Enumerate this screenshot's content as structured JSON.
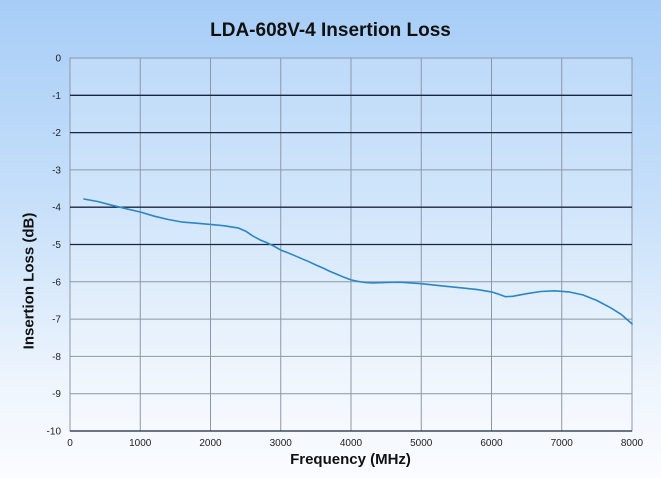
{
  "chart_data": {
    "type": "line",
    "title": "LDA-608V-4 Insertion Loss",
    "xlabel": "Frequency (MHz)",
    "ylabel": "Insertion Loss (dB)",
    "xlim": [
      0,
      8000
    ],
    "ylim": [
      -10,
      0
    ],
    "xticks": [
      0,
      1000,
      2000,
      3000,
      4000,
      5000,
      6000,
      7000,
      8000
    ],
    "yticks": [
      0,
      -1,
      -2,
      -3,
      -4,
      -5,
      -6,
      -7,
      -8,
      -9,
      -10
    ],
    "grid": true,
    "legend": "none",
    "series": [
      {
        "name": "Insertion Loss",
        "color": "#2a86c4",
        "x": [
          200,
          400,
          600,
          800,
          1000,
          1200,
          1400,
          1600,
          1800,
          2000,
          2200,
          2400,
          2500,
          2600,
          2700,
          2800,
          2900,
          3000,
          3100,
          3200,
          3300,
          3400,
          3500,
          3600,
          3700,
          3800,
          3900,
          4000,
          4100,
          4200,
          4300,
          4500,
          4700,
          5000,
          5300,
          5600,
          5800,
          6000,
          6100,
          6200,
          6300,
          6500,
          6700,
          6900,
          7100,
          7300,
          7500,
          7700,
          7850,
          8000
        ],
        "y": [
          -3.78,
          -3.85,
          -3.95,
          -4.04,
          -4.13,
          -4.24,
          -4.33,
          -4.4,
          -4.43,
          -4.46,
          -4.5,
          -4.56,
          -4.64,
          -4.77,
          -4.87,
          -4.95,
          -5.04,
          -5.15,
          -5.22,
          -5.3,
          -5.38,
          -5.46,
          -5.55,
          -5.63,
          -5.72,
          -5.8,
          -5.88,
          -5.95,
          -5.99,
          -6.02,
          -6.03,
          -6.02,
          -6.01,
          -6.05,
          -6.11,
          -6.17,
          -6.21,
          -6.27,
          -6.33,
          -6.4,
          -6.39,
          -6.32,
          -6.26,
          -6.24,
          -6.27,
          -6.35,
          -6.5,
          -6.7,
          -6.88,
          -7.13
        ]
      }
    ]
  },
  "colors": {
    "grid_major": "#1a2540",
    "grid_minor": "#8d98a6",
    "line": "#2a86c4"
  }
}
